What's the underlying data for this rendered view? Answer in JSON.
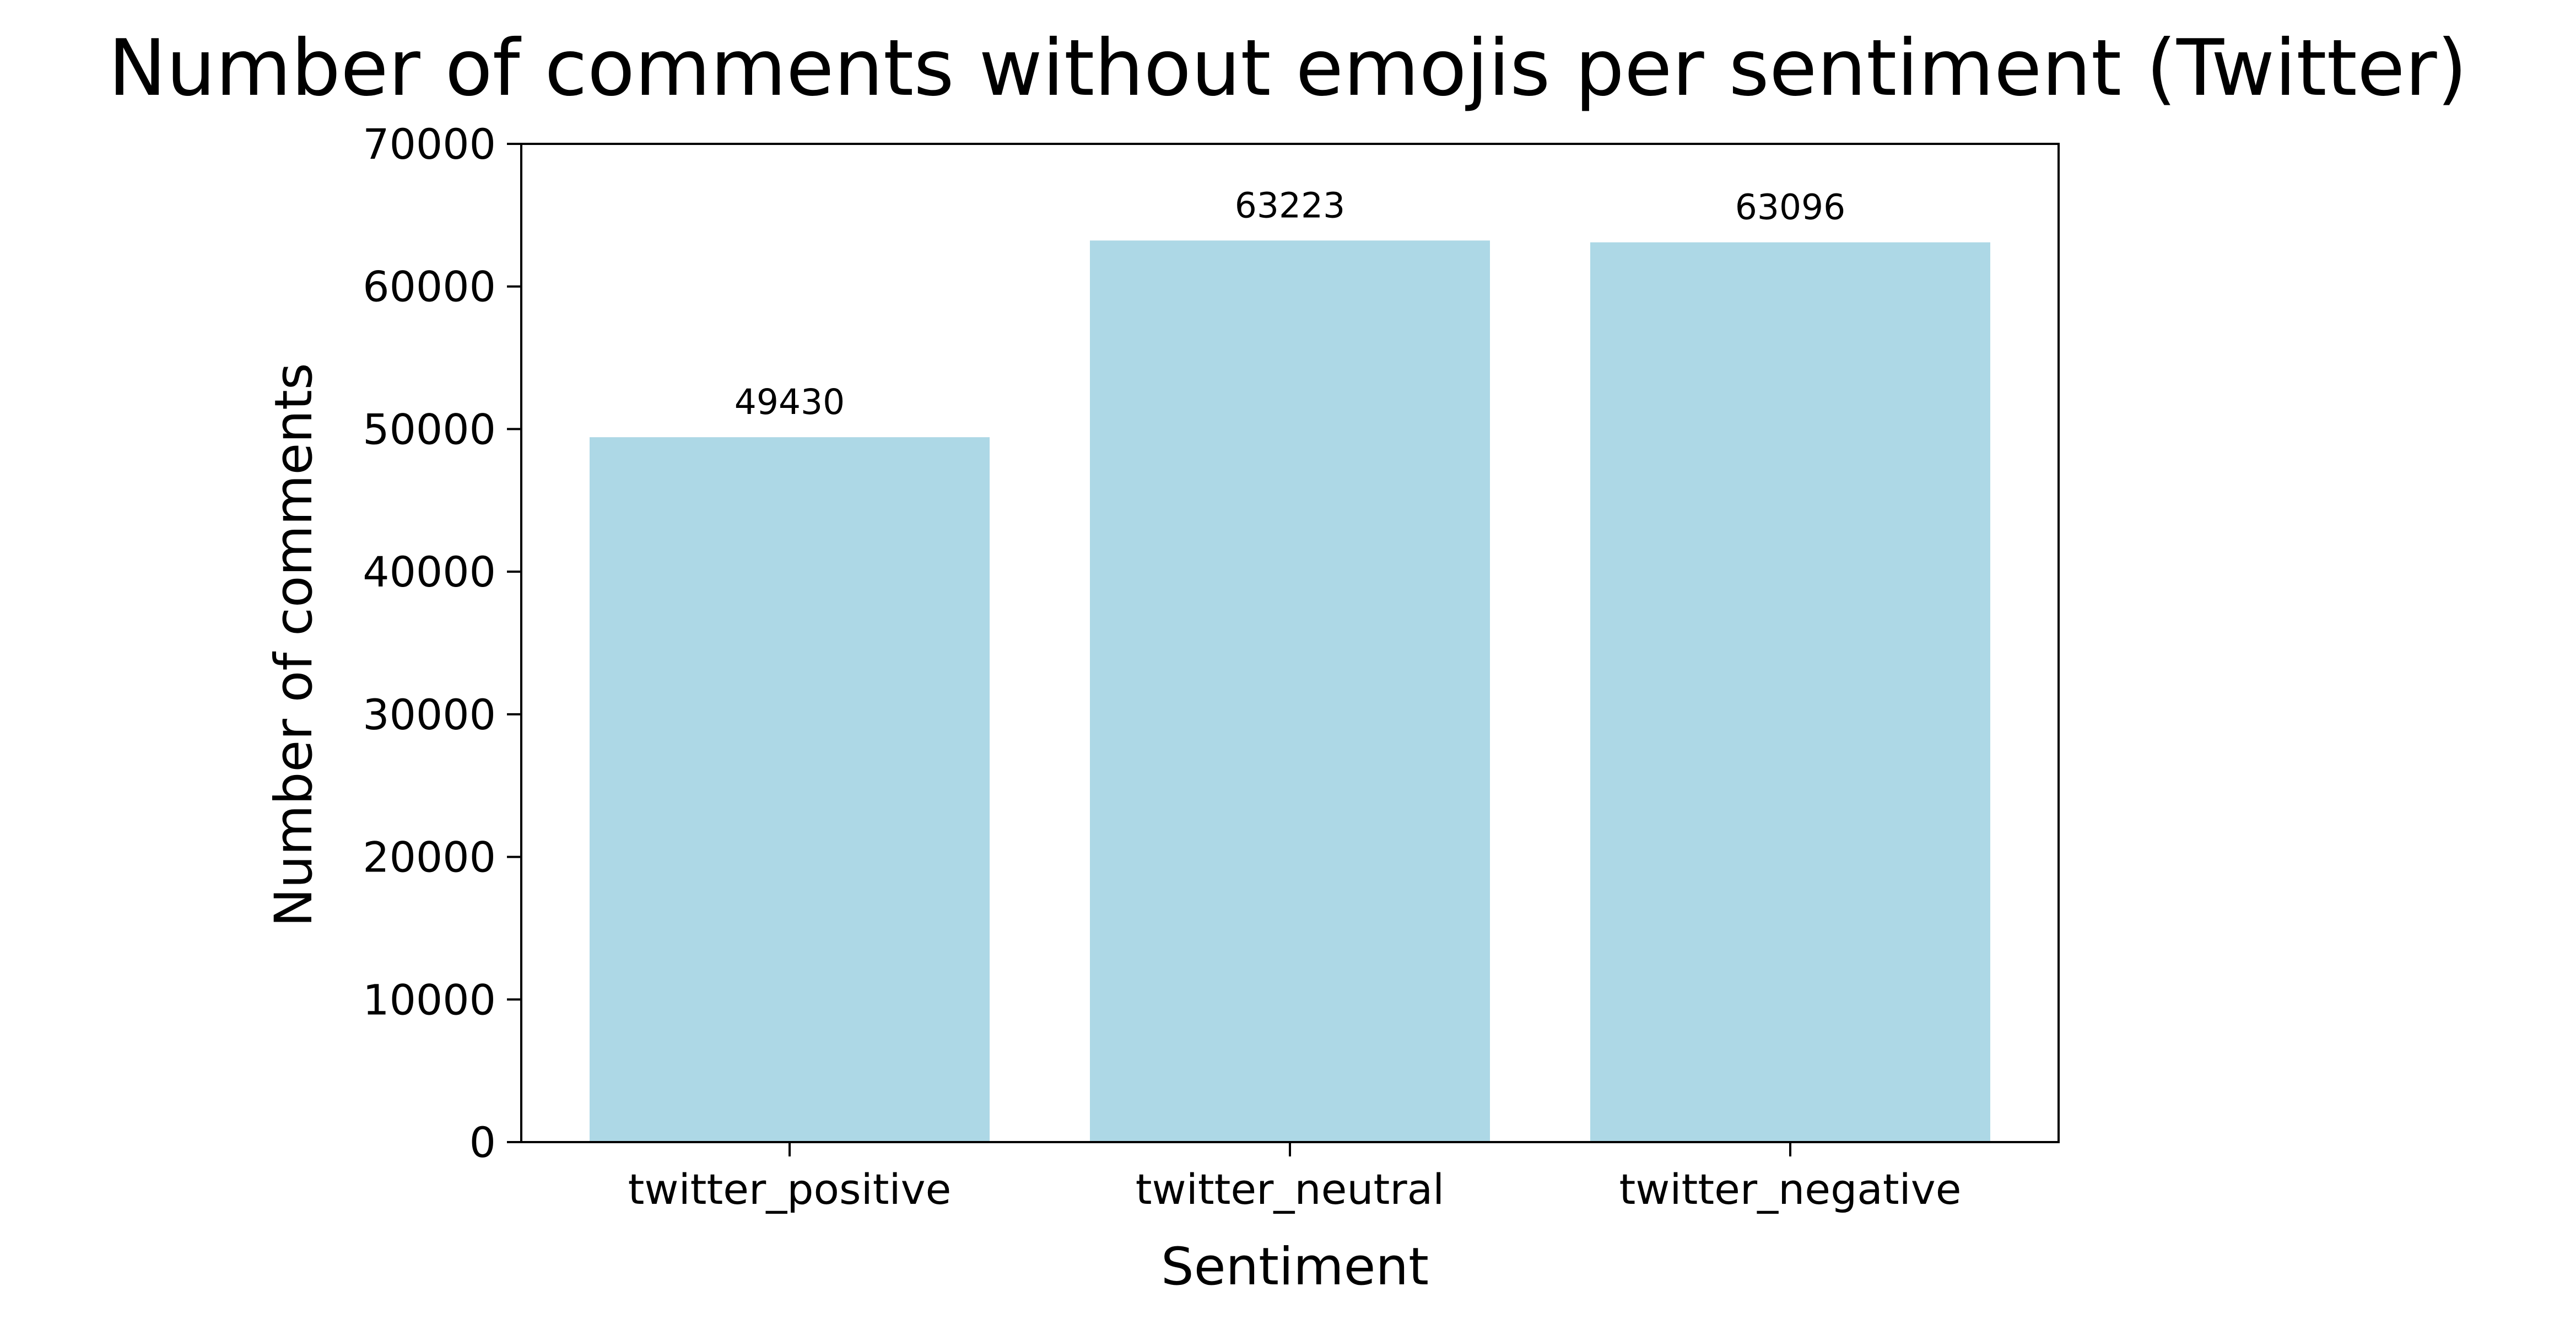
{
  "chart_data": {
    "type": "bar",
    "title": "Number of comments without emojis per sentiment (Twitter)",
    "xlabel": "Sentiment",
    "ylabel": "Number of comments",
    "categories": [
      "twitter_positive",
      "twitter_neutral",
      "twitter_negative"
    ],
    "values": [
      49430,
      63223,
      63096
    ],
    "data_labels": [
      "49430",
      "63223",
      "63096"
    ],
    "ylim": [
      0,
      70000
    ],
    "yticks": [
      0,
      10000,
      20000,
      30000,
      40000,
      50000,
      60000,
      70000
    ],
    "ytick_labels": [
      "0",
      "10000",
      "20000",
      "30000",
      "40000",
      "50000",
      "60000",
      "70000"
    ],
    "bar_color": "#add8e6",
    "grid": false,
    "legend": "none"
  }
}
